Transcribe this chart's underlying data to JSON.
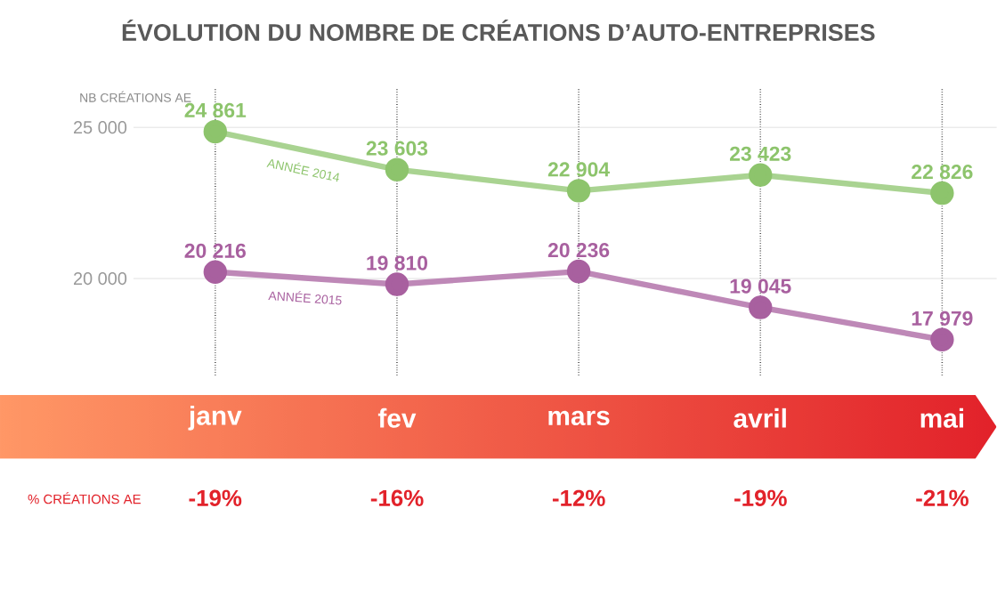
{
  "chart_data": {
    "type": "line",
    "title": "ÉVOLUTION DU NOMBRE DE CRÉATIONS D’AUTO-ENTREPRISES",
    "ylabel": "NB CRÉATIONS AE",
    "categories": [
      "janv",
      "fev",
      "mars",
      "avril",
      "mai"
    ],
    "series": [
      {
        "name": "ANNÉE 2014",
        "color": "#8dc46c",
        "values": [
          24861,
          23603,
          22904,
          23423,
          22826
        ]
      },
      {
        "name": "ANNÉE 2015",
        "color": "#a8609f",
        "values": [
          20216,
          19810,
          20236,
          19045,
          17979
        ]
      }
    ],
    "ylim": [
      16800,
      26300
    ],
    "yticks": [
      {
        "value": 20000,
        "label": "20 000"
      },
      {
        "value": 25000,
        "label": "25 000"
      }
    ],
    "grid": true,
    "legend": false,
    "marker": "circle",
    "line_style": "solid",
    "data_labels": true,
    "annotations": [
      "% CRÉATIONS AE",
      "-19%",
      "-16%",
      "-12%",
      "-19%",
      "-21%"
    ]
  }
}
